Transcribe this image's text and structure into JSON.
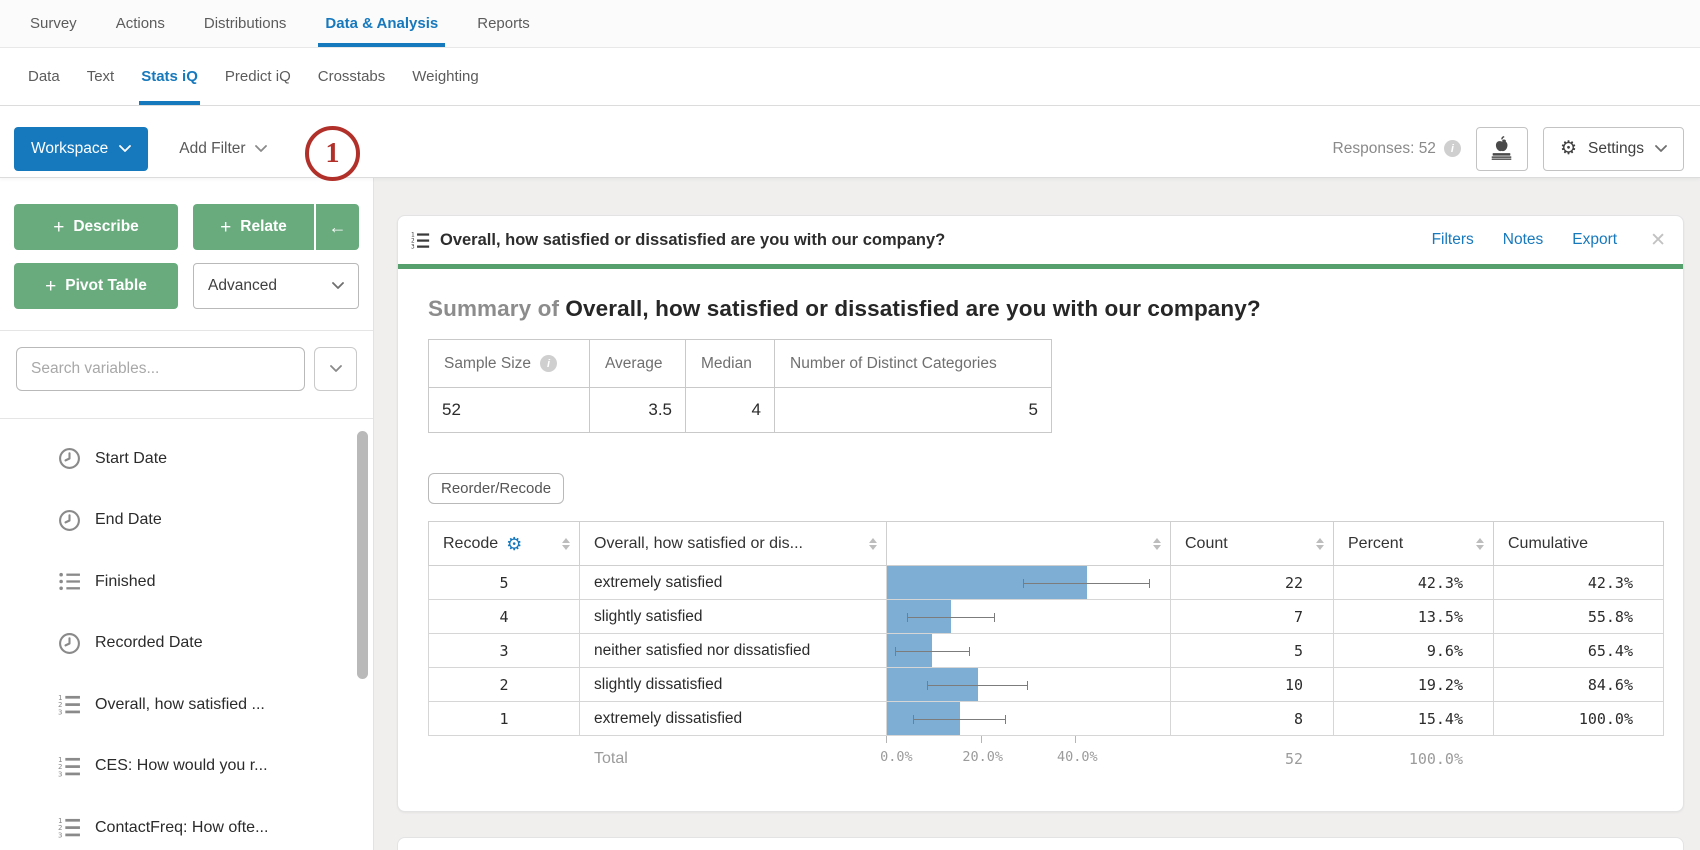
{
  "nav": {
    "tabs": [
      {
        "label": "Survey",
        "active": false
      },
      {
        "label": "Actions",
        "active": false
      },
      {
        "label": "Distributions",
        "active": false
      },
      {
        "label": "Data & Analysis",
        "active": true
      },
      {
        "label": "Reports",
        "active": false
      }
    ]
  },
  "subnav": {
    "tabs": [
      {
        "label": "Data",
        "active": false
      },
      {
        "label": "Text",
        "active": false
      },
      {
        "label": "Stats iQ",
        "active": true
      },
      {
        "label": "Predict iQ",
        "active": false
      },
      {
        "label": "Crosstabs",
        "active": false
      },
      {
        "label": "Weighting",
        "active": false
      }
    ]
  },
  "toolbar": {
    "workspace_label": "Workspace",
    "add_filter_label": "Add Filter",
    "annotation_badge": "1",
    "responses_label": "Responses: 52",
    "settings_label": "Settings"
  },
  "icons": {
    "plus": "+",
    "collapse_left": "←",
    "gear": "⚙",
    "close": "✕",
    "info": "i"
  },
  "sidebar": {
    "describe_label": "Describe",
    "relate_label": "Relate",
    "pivot_label": "Pivot Table",
    "advanced_label": "Advanced",
    "search_placeholder": "Search variables...",
    "variables": [
      {
        "label": "Start Date",
        "icon": "clock"
      },
      {
        "label": "End Date",
        "icon": "clock"
      },
      {
        "label": "Finished",
        "icon": "list"
      },
      {
        "label": "Recorded Date",
        "icon": "clock"
      },
      {
        "label": "Overall, how satisfied ...",
        "icon": "ordered-list"
      },
      {
        "label": "CES: How would you r...",
        "icon": "ordered-list"
      },
      {
        "label": "ContactFreq: How ofte...",
        "icon": "ordered-list"
      }
    ]
  },
  "card": {
    "title": "Overall, how satisfied or dissatisfied are you with our company?",
    "links": {
      "filters": "Filters",
      "notes": "Notes",
      "export": "Export"
    },
    "summary_prefix": "Summary of",
    "summary_title": "Overall, how satisfied or dissatisfied are you with our company?",
    "stats": {
      "headers": [
        "Sample Size",
        "Average",
        "Median",
        "Number of Distinct Categories"
      ],
      "values": [
        "52",
        "3.5",
        "4",
        "5"
      ]
    },
    "reorder_label": "Reorder/Recode",
    "table_columns": {
      "recode": "Recode",
      "question": "Overall, how satisfied or dis...",
      "count": "Count",
      "percent": "Percent",
      "cumulative": "Cumulative"
    }
  },
  "chart_data": {
    "type": "bar",
    "orientation": "horizontal",
    "title": "Overall, how satisfied or dissatisfied are you with our company?",
    "categories": [
      "extremely satisfied",
      "slightly satisfied",
      "neither satisfied nor dissatisfied",
      "slightly dissatisfied",
      "extremely dissatisfied"
    ],
    "recode_values": [
      "5",
      "4",
      "3",
      "2",
      "1"
    ],
    "counts": [
      22,
      7,
      5,
      10,
      8
    ],
    "percents": [
      42.3,
      13.5,
      9.6,
      19.2,
      15.4
    ],
    "cumulative": [
      42.3,
      55.8,
      65.4,
      84.6,
      100.0
    ],
    "error_bars": [
      [
        28.9,
        55.7
      ],
      [
        4.2,
        22.8
      ],
      [
        1.6,
        17.6
      ],
      [
        8.5,
        29.9
      ],
      [
        5.6,
        25.2
      ]
    ],
    "x_axis": {
      "ticks": [
        "0.0%",
        "20.0%",
        "40.0%"
      ],
      "tick_values": [
        0,
        20,
        40
      ],
      "max": 60
    },
    "total": {
      "label": "Total",
      "count": "52",
      "percent": "100.0%"
    },
    "bar_color": "#7FAED5"
  },
  "colors": {
    "accent_blue": "#1779BD",
    "button_green": "#6AAB7E",
    "progress_green": "#55A06C",
    "annotation_red": "#B2302A",
    "bar_blue": "#7FAED5",
    "main_background": "#F0EFEE"
  }
}
